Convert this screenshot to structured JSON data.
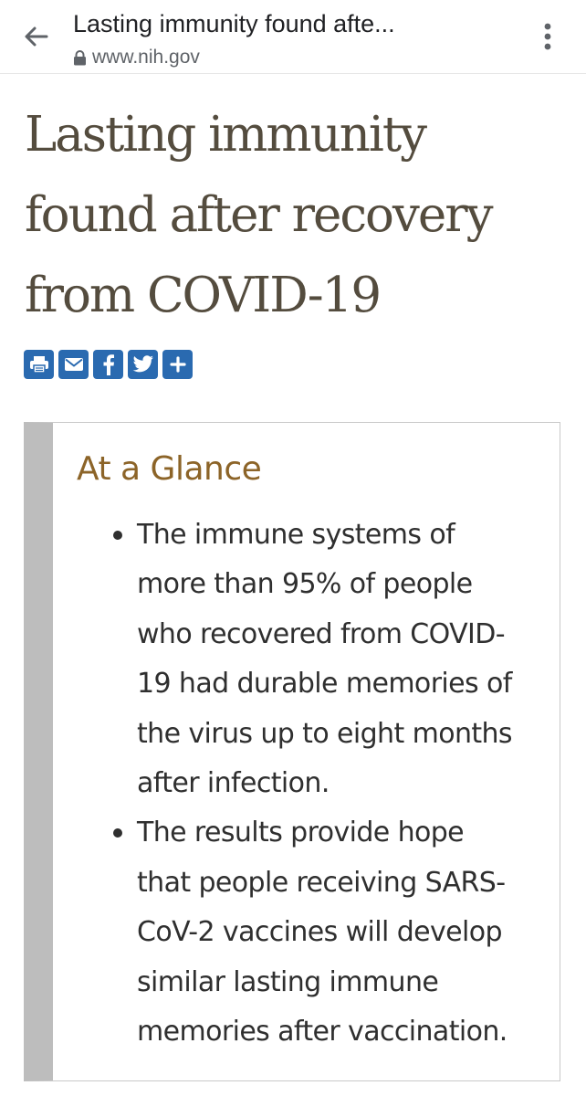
{
  "browser": {
    "page_title": "Lasting immunity found afte...",
    "url": "www.nih.gov",
    "icons": {
      "back": "arrow-left-icon",
      "lock": "lock-icon",
      "menu": "more-vertical-icon"
    }
  },
  "article": {
    "title_lines": [
      "Lasting immunity",
      "found after recovery",
      "from COVID-19"
    ]
  },
  "share": {
    "buttons": [
      "print-icon",
      "email-icon",
      "facebook-icon",
      "twitter-icon",
      "plus-icon"
    ],
    "accent_color": "#2a6ab0"
  },
  "glance": {
    "heading": "At a Glance",
    "heading_color": "#8c6428",
    "items": [
      {
        "lines": [
          "The immune systems of",
          "more than 95% of people",
          "who recovered from COVID-",
          "19 had durable memories of",
          "the virus up to eight months",
          "after infection."
        ]
      },
      {
        "lines": [
          "The results provide hope",
          "that people receiving SARS-",
          "CoV-2 vaccines will develop",
          "similar lasting immune",
          "memories after vaccination."
        ]
      }
    ]
  }
}
